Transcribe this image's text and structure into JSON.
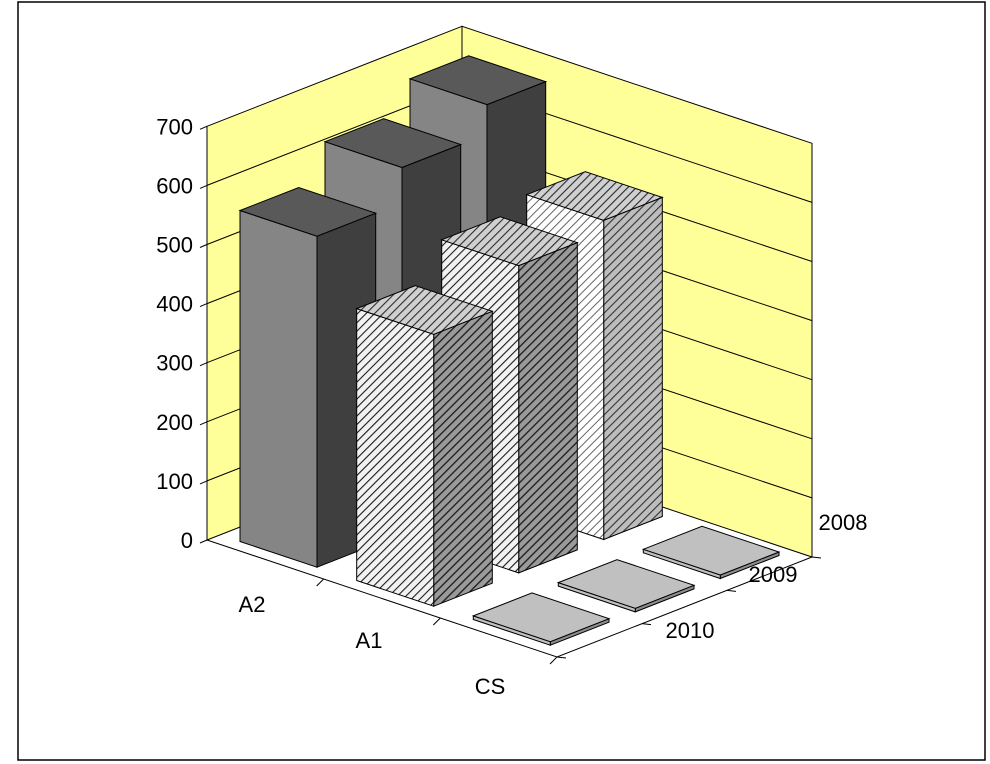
{
  "chart_data": {
    "type": "bar",
    "subtype": "3d-column",
    "categories": [
      "A2",
      "A1",
      "CS"
    ],
    "series": [
      {
        "name": "2010",
        "values": [
          560,
          460,
          0
        ]
      },
      {
        "name": "2009",
        "values": [
          620,
          520,
          0
        ]
      },
      {
        "name": "2008",
        "values": [
          670,
          540,
          0
        ]
      }
    ],
    "y_ticks": [
      "0",
      "100",
      "200",
      "300",
      "400",
      "500",
      "600",
      "700"
    ],
    "ylim": [
      0,
      700
    ],
    "grid": true,
    "title": "",
    "xlabel": "",
    "ylabel": "",
    "colors": {
      "wall": "#ffff99",
      "A2_front": "#858585",
      "A2_side": "#3f3f3f",
      "A2_top": "#595959",
      "A1_front": "#d6d6d6",
      "A1_side": "#8a8a8a",
      "A1_top": "#b8b8b8",
      "CS_fill": "#c0c0c0"
    }
  }
}
